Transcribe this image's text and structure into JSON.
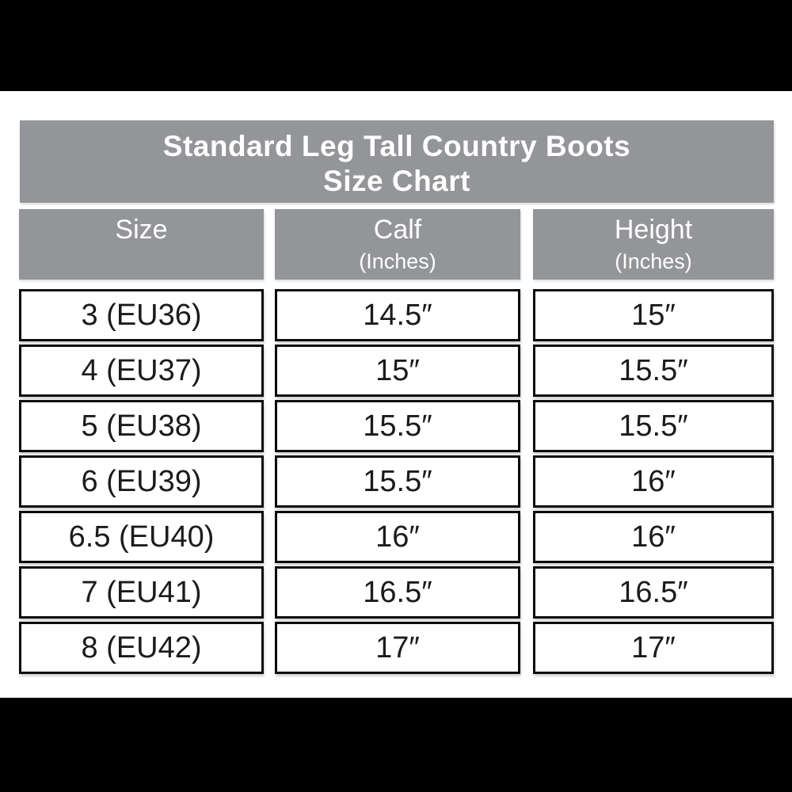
{
  "title": {
    "line1": "Standard Leg Tall Country Boots",
    "line2": "Size Chart"
  },
  "columns": [
    {
      "label": "Size",
      "sub": ""
    },
    {
      "label": "Calf",
      "sub": "(Inches)"
    },
    {
      "label": "Height",
      "sub": "(Inches)"
    }
  ],
  "rows": [
    {
      "size": "3 (EU36)",
      "calf": "14.5″",
      "height": "15″"
    },
    {
      "size": "4 (EU37)",
      "calf": "15″",
      "height": "15.5″"
    },
    {
      "size": "5 (EU38)",
      "calf": "15.5″",
      "height": "15.5″"
    },
    {
      "size": "6 (EU39)",
      "calf": "15.5″",
      "height": "16″"
    },
    {
      "size": "6.5 (EU40)",
      "calf": "16″",
      "height": "16″"
    },
    {
      "size": "7 (EU41)",
      "calf": "16.5″",
      "height": "16.5″"
    },
    {
      "size": "8 (EU42)",
      "calf": "17″",
      "height": "17″"
    }
  ],
  "colors": {
    "band_gray": "#939598",
    "letterbox_black": "#000000",
    "cell_border": "#0c0c0c",
    "cell_text": "#1b1b1b",
    "header_text": "#ffffff"
  },
  "chart_data": {
    "type": "table",
    "title": "Standard Leg Tall Country Boots Size Chart",
    "columns": [
      "Size",
      "Calf (Inches)",
      "Height (Inches)"
    ],
    "rows": [
      [
        "3 (EU36)",
        "14.5″",
        "15″"
      ],
      [
        "4 (EU37)",
        "15″",
        "15.5″"
      ],
      [
        "5 (EU38)",
        "15.5″",
        "15.5″"
      ],
      [
        "6 (EU39)",
        "15.5″",
        "16″"
      ],
      [
        "6.5 (EU40)",
        "16″",
        "16″"
      ],
      [
        "7 (EU41)",
        "16.5″",
        "16.5″"
      ],
      [
        "8 (EU42)",
        "17″",
        "17″"
      ]
    ]
  }
}
